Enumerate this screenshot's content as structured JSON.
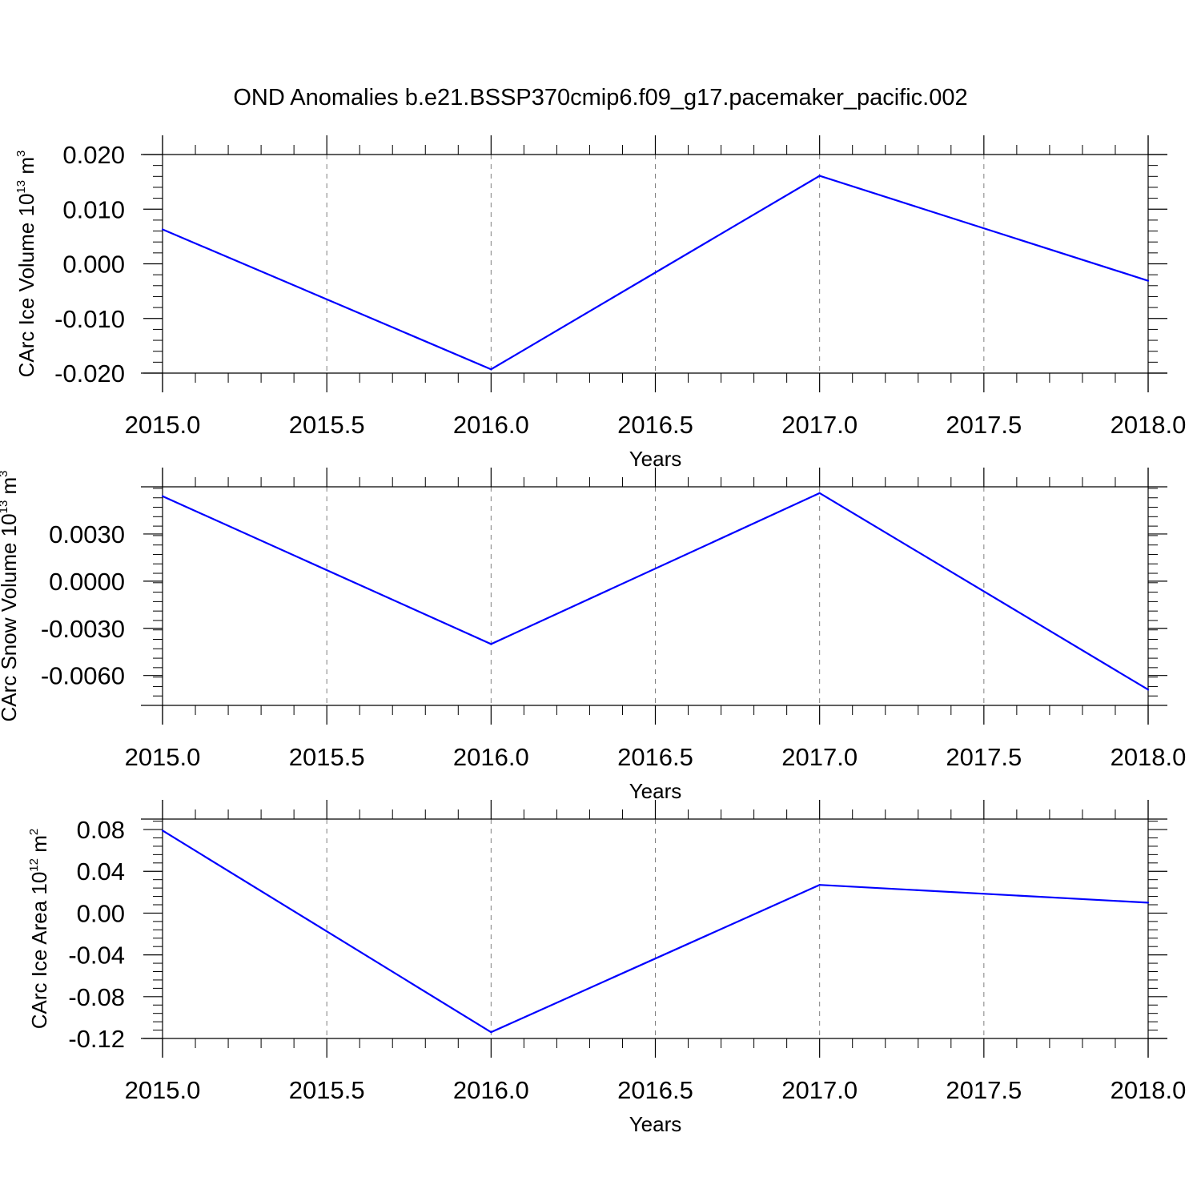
{
  "title": "OND Anomalies b.e21.BSSP370cmip6.f09_g17.pacemaker_pacific.002",
  "colors": {
    "line": "#0000ff",
    "axes": "#000000",
    "grid": "#808080"
  },
  "chart_data": [
    {
      "type": "line",
      "ylabel": {
        "text": "CArc Ice Volume 10",
        "sup": "13",
        "unit": " m",
        "unit_sup": "3"
      },
      "xlabel": "Years",
      "xlim": [
        2015.0,
        2018.0
      ],
      "ylim": [
        -0.02,
        0.02
      ],
      "xticks": [
        "2015.0",
        "2015.5",
        "2016.0",
        "2016.5",
        "2017.0",
        "2017.5",
        "2018.0"
      ],
      "yticks": [
        "-0.020",
        "-0.010",
        "0.000",
        "0.010",
        "0.020"
      ],
      "grid": "x-dashed",
      "x": [
        2015,
        2016,
        2017,
        2018
      ],
      "series": [
        {
          "values": [
            0.0063,
            -0.0193,
            0.0161,
            -0.0031
          ]
        }
      ]
    },
    {
      "type": "line",
      "ylabel": {
        "text": "CArc Snow Volume 10",
        "sup": "13",
        "unit": " m",
        "unit_sup": "3"
      },
      "xlabel": "Years",
      "xlim": [
        2015.0,
        2018.0
      ],
      "ylim": [
        -0.0079,
        0.006
      ],
      "xticks": [
        "2015.0",
        "2015.5",
        "2016.0",
        "2016.5",
        "2017.0",
        "2017.5",
        "2018.0"
      ],
      "yticks": [
        "-0.0060",
        "-0.0030",
        "0.0000",
        "0.0030"
      ],
      "grid": "x-dashed",
      "x": [
        2015,
        2016,
        2017,
        2018
      ],
      "series": [
        {
          "values": [
            0.0054,
            -0.004,
            0.0056,
            -0.0069
          ]
        }
      ]
    },
    {
      "type": "line",
      "ylabel": {
        "text": "CArc Ice Area 10",
        "sup": "12",
        "unit": " m",
        "unit_sup": "2"
      },
      "xlabel": "Years",
      "xlim": [
        2015.0,
        2018.0
      ],
      "ylim": [
        -0.12,
        0.09
      ],
      "xticks": [
        "2015.0",
        "2015.5",
        "2016.0",
        "2016.5",
        "2017.0",
        "2017.5",
        "2018.0"
      ],
      "yticks": [
        "-0.12",
        "-0.08",
        "-0.04",
        "0.00",
        "0.04",
        "0.08"
      ],
      "grid": "x-dashed",
      "x": [
        2015,
        2016,
        2017,
        2018
      ],
      "series": [
        {
          "values": [
            0.079,
            -0.114,
            0.027,
            0.01
          ]
        }
      ]
    }
  ]
}
